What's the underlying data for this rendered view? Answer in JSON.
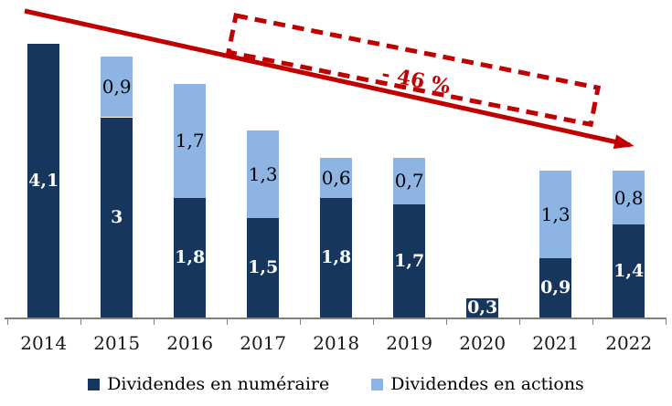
{
  "chart_data": {
    "type": "bar",
    "stacked": true,
    "orientation": "vertical",
    "categories": [
      "2014",
      "2015",
      "2016",
      "2017",
      "2018",
      "2019",
      "2020",
      "2021",
      "2022"
    ],
    "series": [
      {
        "name": "Dividendes en numéraire",
        "color": "#17365D",
        "values": [
          4.1,
          3,
          1.8,
          1.5,
          1.8,
          1.7,
          0.3,
          0.9,
          1.4
        ],
        "display_labels": [
          "4,1",
          "3",
          "1,8",
          "1,5",
          "1,8",
          "1,7",
          "0,3",
          "0,9",
          "1,4"
        ],
        "label_style": "white-bold"
      },
      {
        "name": "Dividendes en actions",
        "color": "#8EB4E3",
        "values": [
          0,
          0.9,
          1.7,
          1.3,
          0.6,
          0.7,
          0,
          1.3,
          0.8
        ],
        "display_labels": [
          "",
          "0,9",
          "1,7",
          "1,3",
          "0,6",
          "0,7",
          "",
          "1,3",
          "0,8"
        ],
        "label_style": "black-regular"
      }
    ],
    "ylim": [
      0,
      4.5
    ],
    "grid": false,
    "axis_color": "#808080",
    "legend_position": "bottom",
    "annotation": {
      "label": "- 46 %",
      "color": "#C00000",
      "shape": "rotated-dashed-box-with-trend-arrow"
    }
  }
}
